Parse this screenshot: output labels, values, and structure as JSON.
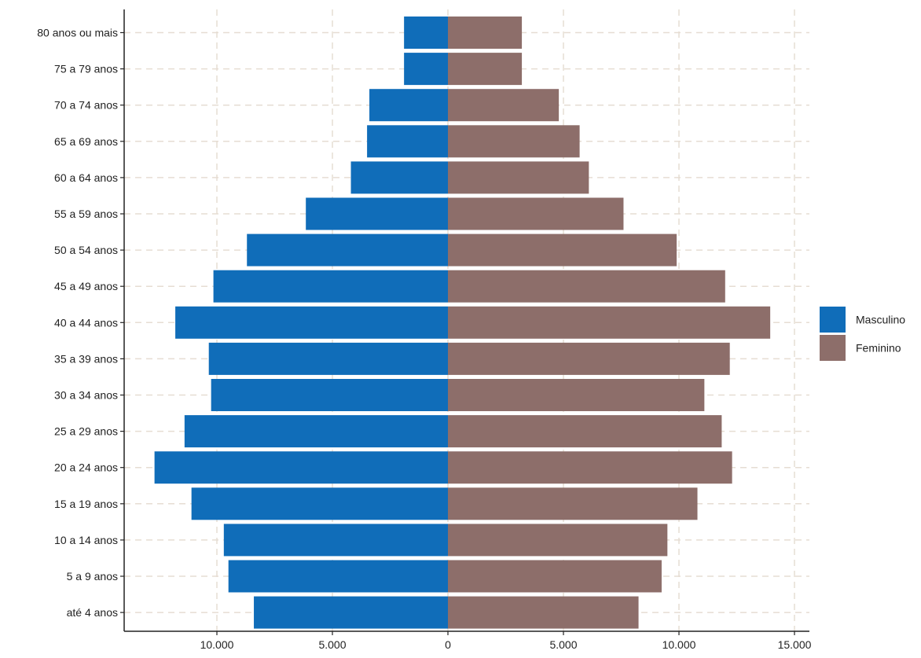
{
  "chart_data": {
    "type": "bar",
    "orientation": "horizontal",
    "layout": "population-pyramid",
    "title": "",
    "xlabel": "",
    "ylabel": "",
    "categories": [
      "até 4 anos",
      "5 a 9 anos",
      "10 a 14 anos",
      "15 a 19 anos",
      "20 a 24 anos",
      "25 a 29 anos",
      "30 a 34 anos",
      "35 a 39 anos",
      "40 a 44 anos",
      "45 a 49 anos",
      "50 a 54 anos",
      "55 a 59 anos",
      "60 a 64 anos",
      "65 a 69 anos",
      "70 a 74 anos",
      "75 a 79 anos",
      "80 anos ou mais"
    ],
    "series": [
      {
        "name": "Masculino",
        "color": "#106db9",
        "direction": "left",
        "values": [
          8400,
          9500,
          9700,
          11100,
          12700,
          11400,
          10250,
          10350,
          11800,
          10150,
          8700,
          6150,
          4200,
          3500,
          3400,
          1900,
          1900
        ]
      },
      {
        "name": "Feminino",
        "color": "#8d6e6a",
        "direction": "right",
        "values": [
          8250,
          9250,
          9500,
          10800,
          12300,
          11850,
          11100,
          12200,
          13950,
          12000,
          9900,
          7600,
          6100,
          5700,
          4800,
          3200,
          3200
        ]
      }
    ],
    "xlim": [
      -14500,
      15000
    ],
    "xticks": [
      -10000,
      -5000,
      0,
      5000,
      10000,
      15000
    ],
    "xtick_labels": [
      "10.000",
      "5.000",
      "0",
      "5.000",
      "10.000",
      "15.000"
    ],
    "grid": true,
    "grid_style": "dashed",
    "grid_color": "#e6ddd3",
    "legend_position": "right"
  }
}
